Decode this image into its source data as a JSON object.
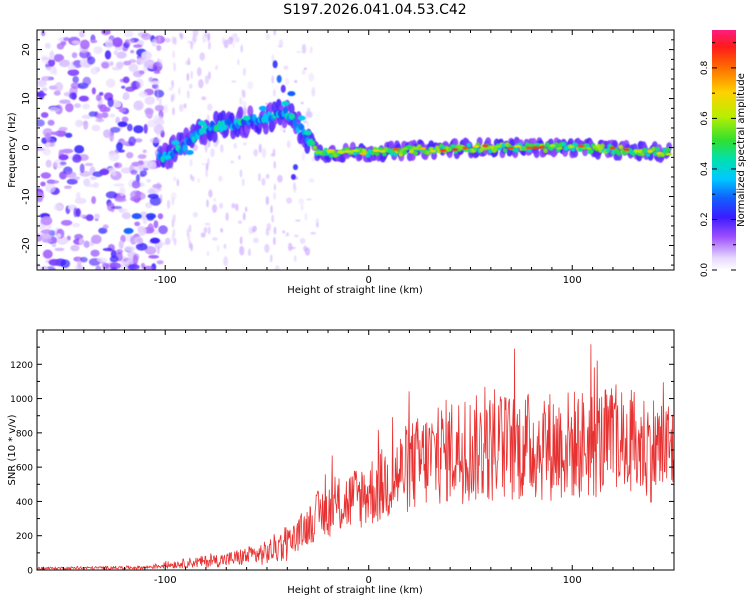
{
  "title": "S197.2026.041.04.53.C42",
  "chart_data": [
    {
      "type": "heatmap",
      "xlabel": "Height of straight line (km)",
      "ylabel": "Frequency (Hz)",
      "xlim": [
        -163,
        150
      ],
      "ylim": [
        -25,
        24
      ],
      "xticks": [
        -100,
        0,
        100
      ],
      "yticks": [
        -20,
        -10,
        0,
        10,
        20
      ],
      "colorbar": {
        "label": "Normalized spectral amplitude",
        "range": [
          0,
          0.95
        ],
        "ticks": [
          0.0,
          0.2,
          0.4,
          0.6,
          0.8
        ]
      },
      "ridge": [
        {
          "x": -102,
          "y": -2
        },
        {
          "x": -92,
          "y": 0
        },
        {
          "x": -80,
          "y": 4
        },
        {
          "x": -65,
          "y": 5
        },
        {
          "x": -50,
          "y": 6
        },
        {
          "x": -40,
          "y": 7
        },
        {
          "x": -32,
          "y": 3
        },
        {
          "x": -25,
          "y": -1
        },
        {
          "x": 0,
          "y": -1
        },
        {
          "x": 50,
          "y": 0
        },
        {
          "x": 100,
          "y": 0
        },
        {
          "x": 145,
          "y": -1
        }
      ]
    },
    {
      "type": "line",
      "xlabel": "Height of straight line (km)",
      "ylabel": "SNR (10 * v/v)",
      "xlim": [
        -163,
        150
      ],
      "ylim": [
        0,
        1400
      ],
      "xticks": [
        -100,
        0,
        100
      ],
      "yticks": [
        0,
        200,
        400,
        600,
        800,
        1000,
        1200
      ],
      "color": "#e83232",
      "envelope": [
        {
          "x": -163,
          "y": 10
        },
        {
          "x": -110,
          "y": 15
        },
        {
          "x": -90,
          "y": 40
        },
        {
          "x": -70,
          "y": 60
        },
        {
          "x": -50,
          "y": 100
        },
        {
          "x": -35,
          "y": 200
        },
        {
          "x": -25,
          "y": 320
        },
        {
          "x": -10,
          "y": 400
        },
        {
          "x": 5,
          "y": 480
        },
        {
          "x": 20,
          "y": 600
        },
        {
          "x": 40,
          "y": 700
        },
        {
          "x": 80,
          "y": 720
        },
        {
          "x": 120,
          "y": 740
        },
        {
          "x": 150,
          "y": 700
        }
      ]
    }
  ]
}
